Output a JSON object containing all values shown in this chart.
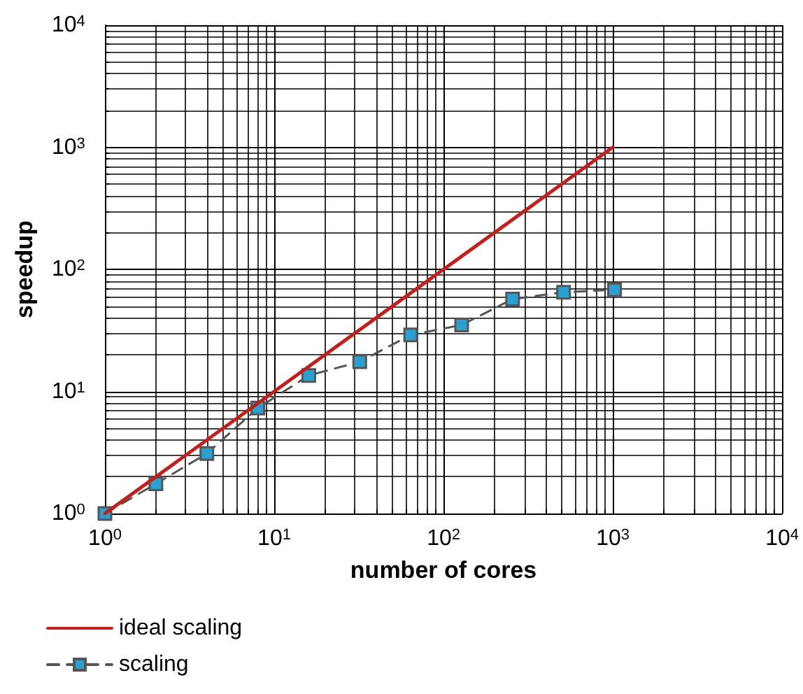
{
  "chart_data": {
    "type": "line",
    "xlabel": "number of cores",
    "ylabel": "speedup",
    "log": "xy",
    "grid": true,
    "legend": "bottom left",
    "xlim": [
      1,
      10000
    ],
    "ylim": [
      1,
      10000
    ],
    "xticks": [
      {
        "value": 1,
        "label": "10$^{0}$"
      },
      {
        "value": 10,
        "label": "10$^{1}$"
      },
      {
        "value": 100,
        "label": "10$^{2}$"
      },
      {
        "value": 1000,
        "label": "10$^{3}$"
      },
      {
        "value": 10000,
        "label": "10$^{4}$"
      }
    ],
    "yticks": [
      {
        "value": 1,
        "label": "10$^{0}$"
      },
      {
        "value": 10,
        "label": "10$^{1}$"
      },
      {
        "value": 100,
        "label": "10$^{2}$"
      },
      {
        "value": 1000,
        "label": "10$^{3}$"
      },
      {
        "value": 10000,
        "label": "10$^{4}$"
      }
    ],
    "series": [
      {
        "name": "ideal scaling",
        "color": "#c0211f",
        "marker": "none",
        "line_style": "solid",
        "x": [
          1,
          1000
        ],
        "values": [
          1,
          1000
        ]
      },
      {
        "name": "scaling",
        "color": "#2b9fd0",
        "marker": "square",
        "line_style": "dashed",
        "x": [
          1,
          2,
          4,
          8,
          16,
          32,
          64,
          128,
          256,
          512,
          1024
        ],
        "values": [
          1,
          1.75,
          3.1,
          7.3,
          13.5,
          17.5,
          29,
          35,
          57,
          65,
          68
        ]
      }
    ]
  }
}
